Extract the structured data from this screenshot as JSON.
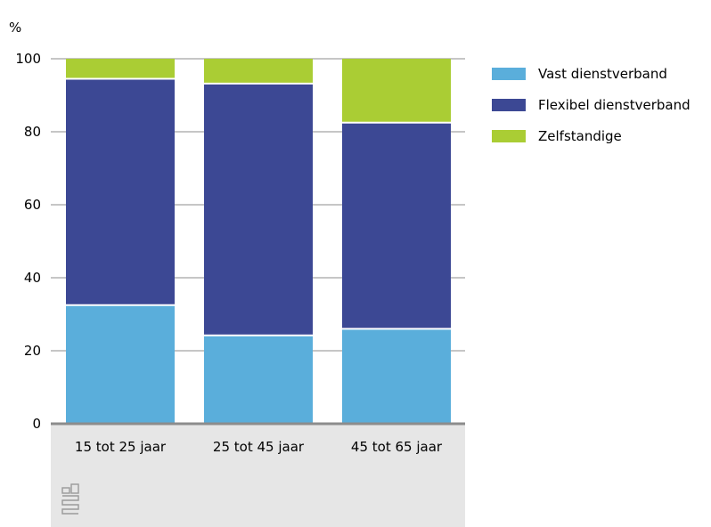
{
  "chart_data": {
    "type": "bar",
    "stacked": true,
    "unit_label": "%",
    "categories": [
      "15 tot 25 jaar",
      "25 tot 45 jaar",
      "45 tot 65 jaar"
    ],
    "series": [
      {
        "name": "Vast dienstverband",
        "color": "#5aaedb",
        "values": [
          32.5,
          24.2,
          26.0
        ]
      },
      {
        "name": "Flexibel dienstverband",
        "color": "#3c4894",
        "values": [
          62.0,
          69.0,
          56.5
        ]
      },
      {
        "name": "Zelfstandige",
        "color": "#aacd34",
        "values": [
          5.5,
          6.8,
          17.5
        ]
      }
    ],
    "ylim": [
      0,
      100
    ],
    "yticks": [
      0,
      20,
      40,
      60,
      80,
      100
    ],
    "grid": true,
    "legend": "right"
  },
  "footer": {
    "logo_icon": "cbs-logo-icon"
  }
}
